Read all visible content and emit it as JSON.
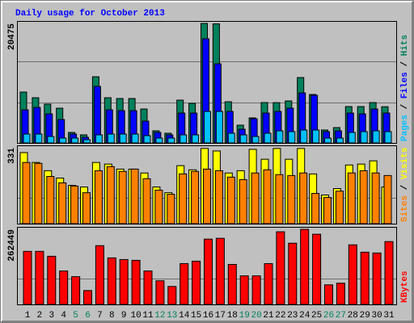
{
  "title": "Daily usage for October 2013",
  "chart_data": [
    {
      "type": "bar",
      "separator": " / ",
      "ylim": [
        0,
        20475
      ],
      "yticks": [
        20475
      ],
      "series": [
        {
          "name": "Hits",
          "color": "#00805c",
          "values": [
            8713,
            7745,
            6638,
            5947,
            1798,
            1383,
            11341,
            7745,
            7607,
            7607,
            5809,
            2075,
            1660,
            7330,
            6777,
            20475,
            20400,
            7053,
            3043,
            4287,
            6915,
            6900,
            7192,
            11202,
            8298,
            2213,
            2628,
            6224,
            6224,
            6915,
            6200
          ]
        },
        {
          "name": "Files",
          "color": "#0000ff",
          "values": [
            5670,
            6085,
            4979,
            4011,
            1521,
            968,
            9681,
            5670,
            5532,
            5532,
            3734,
            1798,
            1383,
            5117,
            5117,
            17841,
            13553,
            5394,
            2351,
            4149,
            5117,
            5394,
            5947,
            8575,
            8160,
            1936,
            2075,
            5117,
            4979,
            5809,
            5117
          ]
        },
        {
          "name": "Pages",
          "color": "#00c0ff",
          "values": [
            1521,
            1521,
            1106,
            830,
            830,
            553,
            1383,
            1521,
            1521,
            1521,
            1245,
            830,
            830,
            1383,
            1383,
            5394,
            5394,
            1660,
            1383,
            1106,
            1660,
            2075,
            1936,
            2213,
            2213,
            830,
            830,
            1798,
            1936,
            2075,
            1936
          ]
        }
      ]
    },
    {
      "type": "bar",
      "separator": " / ",
      "ylim": [
        0,
        331
      ],
      "yticks": [
        331
      ],
      "series": [
        {
          "name": "Visits",
          "color": "#ffff00",
          "values": [
            310,
            267,
            231,
            199,
            167,
            160,
            267,
            260,
            238,
            238,
            221,
            160,
            135,
            253,
            235,
            328,
            317,
            221,
            231,
            324,
            281,
            328,
            281,
            328,
            217,
            125,
            153,
            256,
            260,
            274,
            160
          ]
        },
        {
          "name": "Sites",
          "color": "#ff8000",
          "values": [
            267,
            263,
            206,
            178,
            164,
            135,
            231,
            249,
            228,
            238,
            196,
            146,
            128,
            217,
            228,
            238,
            231,
            203,
            192,
            221,
            235,
            214,
            210,
            221,
            132,
            114,
            142,
            221,
            231,
            221,
            210
          ]
        }
      ]
    },
    {
      "type": "bar",
      "ylim": [
        0,
        262449
      ],
      "yticks": [
        262449
      ],
      "categories": [
        "1",
        "2",
        "3",
        "4",
        "5",
        "6",
        "7",
        "8",
        "9",
        "10",
        "11",
        "12",
        "13",
        "14",
        "15",
        "16",
        "17",
        "18",
        "19",
        "20",
        "21",
        "22",
        "23",
        "24",
        "25",
        "26",
        "27",
        "28",
        "29",
        "30",
        "31"
      ],
      "category_colors": [
        "#000000",
        "#000000",
        "#000000",
        "#000000",
        "#00805c",
        "#00805c",
        "#000000",
        "#000000",
        "#000000",
        "#000000",
        "#000000",
        "#00805c",
        "#00805c",
        "#000000",
        "#000000",
        "#000000",
        "#000000",
        "#000000",
        "#00805c",
        "#00805c",
        "#000000",
        "#000000",
        "#000000",
        "#000000",
        "#000000",
        "#00805c",
        "#00805c",
        "#000000",
        "#000000",
        "#000000",
        "#000000"
      ],
      "series": [
        {
          "name": "KBytes",
          "color": "#ff0000",
          "values": [
            185426,
            185426,
            168310,
            116962,
            96993,
            48497,
            205396,
            162605,
            156898,
            154047,
            116962,
            82729,
            62760,
            142636,
            151194,
            228218,
            231070,
            139783,
            99846,
            99846,
            142636,
            253891,
            213955,
            262449,
            245333,
            68466,
            74172,
            208250,
            182574,
            179722,
            219660
          ]
        }
      ]
    }
  ]
}
